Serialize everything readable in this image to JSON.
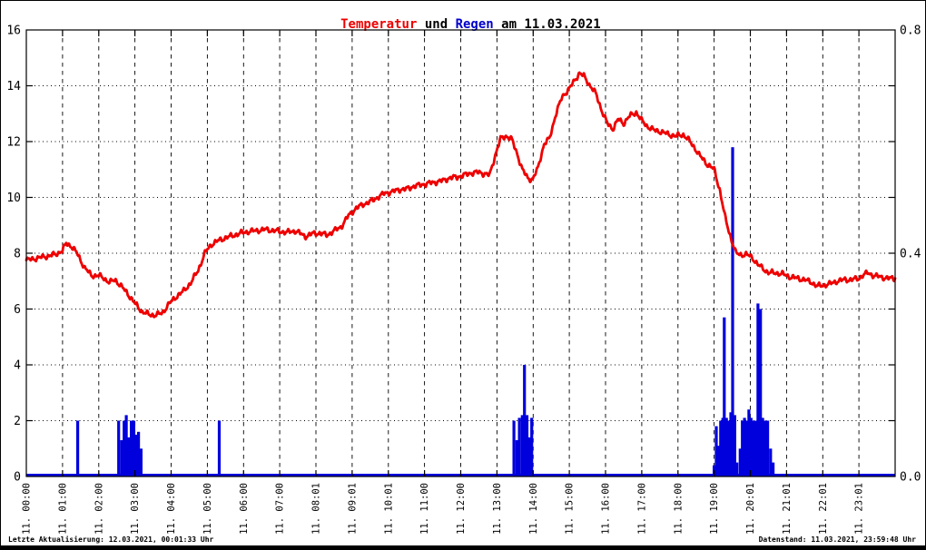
{
  "title": {
    "temperatur": "Temperatur",
    "und": " und ",
    "regen": "Regen",
    "date_suffix": " am 11.03.2021"
  },
  "footer": {
    "left": "Letzte Aktualisierung: 12.03.2021, 00:01:33 Uhr",
    "right": "Datenstand: 11.03.2021, 23:59:48 Uhr"
  },
  "colors": {
    "temperature_line": "#ee0000",
    "rain_bars": "#0000dd",
    "title_red": "#ee0000",
    "title_blue": "#0000cc",
    "grid": "#000000",
    "background": "#ffffff"
  },
  "chart_data": {
    "type": "line+bar",
    "title": "Temperatur und Regen am 11.03.2021",
    "grid": true,
    "legend": "none (series identified by title colors)",
    "x_axis": {
      "unit": "time of day on 11.03.2021",
      "range": [
        0,
        24
      ],
      "tick_positions": [
        0,
        1,
        2,
        3,
        4,
        5,
        6,
        7,
        8,
        9,
        10,
        11,
        12,
        13,
        14,
        15,
        16,
        17,
        18,
        19,
        20,
        21,
        22,
        23
      ],
      "tick_labels": [
        "11. 00:00",
        "11. 01:00",
        "11. 02:00",
        "11. 03:00",
        "11. 04:00",
        "11. 05:00",
        "11. 06:00",
        "11. 07:00",
        "11. 08:01",
        "11. 09:01",
        "11. 10:01",
        "11. 11:00",
        "11. 12:00",
        "11. 13:00",
        "11. 14:00",
        "11. 15:00",
        "11. 16:00",
        "11. 17:00",
        "11. 18:00",
        "11. 19:00",
        "11. 20:01",
        "11. 21:01",
        "11. 22:01",
        "11. 23:01"
      ]
    },
    "y_left": {
      "series": "Temperatur",
      "range": [
        0,
        16
      ],
      "ticks": [
        0,
        2,
        4,
        6,
        8,
        10,
        12,
        14,
        16
      ]
    },
    "y_right": {
      "series": "Regen",
      "range": [
        0,
        0.8
      ],
      "labeled_ticks": [
        0.0,
        0.4,
        0.8
      ],
      "minor_tick_step": 0.1
    },
    "temperature": {
      "name": "Temperatur",
      "color": "#ee0000",
      "axis": "left",
      "points": [
        [
          0,
          7.75
        ],
        [
          0.2,
          7.8
        ],
        [
          0.4,
          7.85
        ],
        [
          0.6,
          7.9
        ],
        [
          0.8,
          7.95
        ],
        [
          1.0,
          8.1
        ],
        [
          1.1,
          8.35
        ],
        [
          1.25,
          8.25
        ],
        [
          1.4,
          8.0
        ],
        [
          1.6,
          7.5
        ],
        [
          1.8,
          7.2
        ],
        [
          2.0,
          7.2
        ],
        [
          2.15,
          7.1
        ],
        [
          2.3,
          6.95
        ],
        [
          2.45,
          7.05
        ],
        [
          2.6,
          6.85
        ],
        [
          2.8,
          6.55
        ],
        [
          3.0,
          6.2
        ],
        [
          3.2,
          5.9
        ],
        [
          3.4,
          5.8
        ],
        [
          3.55,
          5.78
        ],
        [
          3.75,
          5.85
        ],
        [
          3.95,
          6.2
        ],
        [
          4.15,
          6.45
        ],
        [
          4.35,
          6.65
        ],
        [
          4.55,
          6.95
        ],
        [
          4.75,
          7.4
        ],
        [
          4.95,
          8.05
        ],
        [
          5.1,
          8.3
        ],
        [
          5.3,
          8.45
        ],
        [
          5.5,
          8.55
        ],
        [
          5.75,
          8.65
        ],
        [
          6.0,
          8.75
        ],
        [
          6.3,
          8.8
        ],
        [
          6.6,
          8.85
        ],
        [
          6.9,
          8.8
        ],
        [
          7.2,
          8.75
        ],
        [
          7.45,
          8.8
        ],
        [
          7.7,
          8.6
        ],
        [
          7.9,
          8.7
        ],
        [
          8.1,
          8.72
        ],
        [
          8.3,
          8.65
        ],
        [
          8.5,
          8.8
        ],
        [
          8.7,
          8.95
        ],
        [
          8.9,
          9.35
        ],
        [
          9.1,
          9.6
        ],
        [
          9.3,
          9.75
        ],
        [
          9.5,
          9.85
        ],
        [
          9.7,
          10.0
        ],
        [
          9.9,
          10.15
        ],
        [
          10.1,
          10.2
        ],
        [
          10.3,
          10.28
        ],
        [
          10.5,
          10.3
        ],
        [
          10.7,
          10.4
        ],
        [
          10.9,
          10.45
        ],
        [
          11.1,
          10.5
        ],
        [
          11.3,
          10.55
        ],
        [
          11.5,
          10.6
        ],
        [
          11.7,
          10.7
        ],
        [
          11.9,
          10.73
        ],
        [
          12.1,
          10.8
        ],
        [
          12.3,
          10.88
        ],
        [
          12.5,
          10.9
        ],
        [
          12.65,
          10.85
        ],
        [
          12.8,
          10.8
        ],
        [
          12.95,
          11.5
        ],
        [
          13.1,
          12.1
        ],
        [
          13.25,
          12.2
        ],
        [
          13.4,
          12.1
        ],
        [
          13.55,
          11.6
        ],
        [
          13.7,
          11.0
        ],
        [
          13.85,
          10.7
        ],
        [
          13.98,
          10.63
        ],
        [
          14.12,
          11.0
        ],
        [
          14.3,
          11.9
        ],
        [
          14.45,
          12.1
        ],
        [
          14.62,
          12.95
        ],
        [
          14.8,
          13.6
        ],
        [
          15.0,
          13.9
        ],
        [
          15.15,
          14.2
        ],
        [
          15.28,
          14.45
        ],
        [
          15.4,
          14.35
        ],
        [
          15.55,
          14.05
        ],
        [
          15.74,
          13.7
        ],
        [
          15.9,
          13.1
        ],
        [
          16.05,
          12.65
        ],
        [
          16.2,
          12.45
        ],
        [
          16.35,
          12.8
        ],
        [
          16.5,
          12.65
        ],
        [
          16.65,
          12.9
        ],
        [
          16.85,
          13.05
        ],
        [
          17.0,
          12.75
        ],
        [
          17.15,
          12.55
        ],
        [
          17.35,
          12.4
        ],
        [
          17.55,
          12.35
        ],
        [
          17.75,
          12.25
        ],
        [
          17.95,
          12.2
        ],
        [
          18.15,
          12.25
        ],
        [
          18.3,
          12.05
        ],
        [
          18.45,
          11.8
        ],
        [
          18.6,
          11.5
        ],
        [
          18.8,
          11.2
        ],
        [
          19.0,
          11.0
        ],
        [
          19.15,
          10.3
        ],
        [
          19.3,
          9.3
        ],
        [
          19.45,
          8.6
        ],
        [
          19.6,
          8.0
        ],
        [
          19.75,
          7.95
        ],
        [
          19.9,
          7.95
        ],
        [
          20.05,
          7.85
        ],
        [
          20.2,
          7.6
        ],
        [
          20.35,
          7.45
        ],
        [
          20.5,
          7.3
        ],
        [
          20.7,
          7.3
        ],
        [
          20.9,
          7.25
        ],
        [
          21.1,
          7.15
        ],
        [
          21.3,
          7.1
        ],
        [
          21.5,
          7.05
        ],
        [
          21.7,
          6.95
        ],
        [
          21.85,
          6.82
        ],
        [
          22.0,
          6.85
        ],
        [
          22.2,
          6.9
        ],
        [
          22.4,
          7.0
        ],
        [
          22.6,
          7.05
        ],
        [
          22.8,
          7.05
        ],
        [
          23.0,
          7.1
        ],
        [
          23.1,
          7.2
        ],
        [
          23.25,
          7.3
        ],
        [
          23.4,
          7.2
        ],
        [
          23.6,
          7.15
        ],
        [
          23.8,
          7.1
        ],
        [
          24,
          7.1
        ]
      ]
    },
    "rain": {
      "name": "Regen",
      "color": "#0000dd",
      "axis": "right",
      "bars": [
        [
          1.42,
          0.1
        ],
        [
          2.55,
          0.1
        ],
        [
          2.63,
          0.065
        ],
        [
          2.7,
          0.1
        ],
        [
          2.76,
          0.11
        ],
        [
          2.83,
          0.07
        ],
        [
          2.9,
          0.1
        ],
        [
          2.97,
          0.1
        ],
        [
          3.03,
          0.075
        ],
        [
          3.1,
          0.08
        ],
        [
          3.17,
          0.05
        ],
        [
          5.33,
          0.1
        ],
        [
          13.47,
          0.1
        ],
        [
          13.55,
          0.065
        ],
        [
          13.62,
          0.105
        ],
        [
          13.7,
          0.11
        ],
        [
          13.76,
          0.2
        ],
        [
          13.83,
          0.11
        ],
        [
          13.9,
          0.07
        ],
        [
          13.96,
          0.105
        ],
        [
          19.0,
          0.02
        ],
        [
          19.06,
          0.09
        ],
        [
          19.12,
          0.055
        ],
        [
          19.18,
          0.1
        ],
        [
          19.24,
          0.105
        ],
        [
          19.28,
          0.285
        ],
        [
          19.34,
          0.105
        ],
        [
          19.4,
          0.1
        ],
        [
          19.46,
          0.115
        ],
        [
          19.51,
          0.59
        ],
        [
          19.57,
          0.11
        ],
        [
          19.63,
          0.025
        ],
        [
          19.72,
          0.05
        ],
        [
          19.78,
          0.1
        ],
        [
          19.84,
          0.105
        ],
        [
          19.9,
          0.1
        ],
        [
          19.96,
          0.12
        ],
        [
          20.02,
          0.105
        ],
        [
          20.08,
          0.1
        ],
        [
          20.15,
          0.1
        ],
        [
          20.21,
          0.31
        ],
        [
          20.28,
          0.3
        ],
        [
          20.34,
          0.105
        ],
        [
          20.4,
          0.1
        ],
        [
          20.48,
          0.1
        ],
        [
          20.56,
          0.05
        ],
        [
          20.63,
          0.025
        ]
      ]
    }
  }
}
